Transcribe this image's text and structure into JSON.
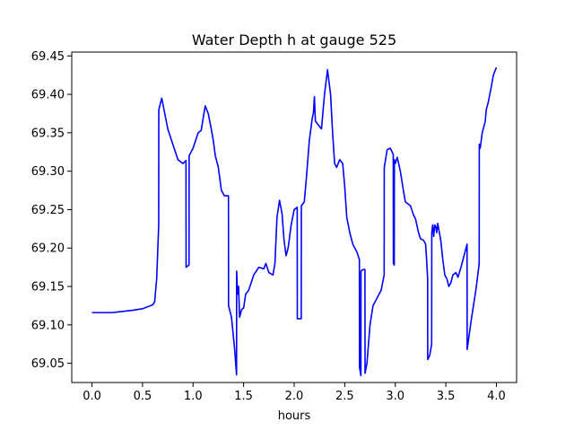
{
  "chart_data": {
    "type": "line",
    "title": "Water Depth h at gauge 525",
    "xlabel": "hours",
    "ylabel": "",
    "xlim": [
      -0.2,
      4.2
    ],
    "ylim": [
      69.025,
      69.455
    ],
    "grid": false,
    "legend": "none",
    "xticks": [
      0.0,
      0.5,
      1.0,
      1.5,
      2.0,
      2.5,
      3.0,
      3.5,
      4.0
    ],
    "xtick_labels": [
      "0.0",
      "0.5",
      "1.0",
      "1.5",
      "2.0",
      "2.5",
      "3.0",
      "3.5",
      "4.0"
    ],
    "yticks": [
      69.05,
      69.1,
      69.15,
      69.2,
      69.25,
      69.3,
      69.35,
      69.4,
      69.45
    ],
    "ytick_labels": [
      "69.05",
      "69.10",
      "69.15",
      "69.20",
      "69.25",
      "69.30",
      "69.35",
      "69.40",
      "69.45"
    ],
    "series": [
      {
        "name": "",
        "color": "#0000ff",
        "points": [
          [
            0.0,
            69.116
          ],
          [
            0.2,
            69.116
          ],
          [
            0.4,
            69.119
          ],
          [
            0.5,
            69.121
          ],
          [
            0.6,
            69.126
          ],
          [
            0.62,
            69.13
          ],
          [
            0.64,
            69.16
          ],
          [
            0.66,
            69.23
          ],
          [
            0.661,
            69.38
          ],
          [
            0.69,
            69.395
          ],
          [
            0.72,
            69.375
          ],
          [
            0.75,
            69.355
          ],
          [
            0.8,
            69.335
          ],
          [
            0.85,
            69.315
          ],
          [
            0.9,
            69.31
          ],
          [
            0.93,
            69.314
          ],
          [
            0.931,
            69.175
          ],
          [
            0.96,
            69.178
          ],
          [
            0.961,
            69.32
          ],
          [
            1.0,
            69.33
          ],
          [
            1.05,
            69.35
          ],
          [
            1.08,
            69.353
          ],
          [
            1.12,
            69.385
          ],
          [
            1.15,
            69.375
          ],
          [
            1.18,
            69.355
          ],
          [
            1.2,
            69.34
          ],
          [
            1.22,
            69.32
          ],
          [
            1.25,
            69.305
          ],
          [
            1.28,
            69.275
          ],
          [
            1.31,
            69.268
          ],
          [
            1.35,
            69.268
          ],
          [
            1.351,
            69.125
          ],
          [
            1.38,
            69.11
          ],
          [
            1.41,
            69.07
          ],
          [
            1.43,
            69.035
          ],
          [
            1.431,
            69.17
          ],
          [
            1.44,
            69.14
          ],
          [
            1.45,
            69.15
          ],
          [
            1.46,
            69.11
          ],
          [
            1.48,
            69.12
          ],
          [
            1.5,
            69.122
          ],
          [
            1.52,
            69.14
          ],
          [
            1.55,
            69.145
          ],
          [
            1.6,
            69.165
          ],
          [
            1.65,
            69.175
          ],
          [
            1.7,
            69.173
          ],
          [
            1.72,
            69.18
          ],
          [
            1.75,
            69.168
          ],
          [
            1.79,
            69.165
          ],
          [
            1.81,
            69.18
          ],
          [
            1.83,
            69.24
          ],
          [
            1.855,
            69.262
          ],
          [
            1.88,
            69.245
          ],
          [
            1.9,
            69.21
          ],
          [
            1.92,
            69.19
          ],
          [
            1.94,
            69.2
          ],
          [
            1.97,
            69.23
          ],
          [
            2.0,
            69.25
          ],
          [
            2.03,
            69.253
          ],
          [
            2.031,
            69.108
          ],
          [
            2.07,
            69.108
          ],
          [
            2.071,
            69.255
          ],
          [
            2.1,
            69.26
          ],
          [
            2.12,
            69.29
          ],
          [
            2.15,
            69.34
          ],
          [
            2.18,
            69.37
          ],
          [
            2.19,
            69.375
          ],
          [
            2.2,
            69.397
          ],
          [
            2.21,
            69.365
          ],
          [
            2.24,
            69.36
          ],
          [
            2.27,
            69.355
          ],
          [
            2.3,
            69.4
          ],
          [
            2.33,
            69.432
          ],
          [
            2.36,
            69.4
          ],
          [
            2.38,
            69.35
          ],
          [
            2.4,
            69.31
          ],
          [
            2.42,
            69.305
          ],
          [
            2.45,
            69.315
          ],
          [
            2.48,
            69.31
          ],
          [
            2.5,
            69.28
          ],
          [
            2.52,
            69.24
          ],
          [
            2.55,
            69.22
          ],
          [
            2.58,
            69.205
          ],
          [
            2.62,
            69.195
          ],
          [
            2.645,
            69.185
          ],
          [
            2.646,
            69.045
          ],
          [
            2.66,
            69.034
          ],
          [
            2.661,
            69.17
          ],
          [
            2.68,
            69.172
          ],
          [
            2.7,
            69.172
          ],
          [
            2.701,
            69.037
          ],
          [
            2.72,
            69.05
          ],
          [
            2.75,
            69.1
          ],
          [
            2.78,
            69.125
          ],
          [
            2.82,
            69.135
          ],
          [
            2.86,
            69.145
          ],
          [
            2.89,
            69.165
          ],
          [
            2.891,
            69.305
          ],
          [
            2.92,
            69.328
          ],
          [
            2.95,
            69.33
          ],
          [
            2.98,
            69.322
          ],
          [
            2.981,
            69.18
          ],
          [
            2.99,
            69.178
          ],
          [
            2.991,
            69.315
          ],
          [
            3.0,
            69.31
          ],
          [
            3.02,
            69.318
          ],
          [
            3.05,
            69.3
          ],
          [
            3.08,
            69.275
          ],
          [
            3.1,
            69.26
          ],
          [
            3.15,
            69.255
          ],
          [
            3.18,
            69.243
          ],
          [
            3.2,
            69.238
          ],
          [
            3.23,
            69.22
          ],
          [
            3.25,
            69.212
          ],
          [
            3.28,
            69.21
          ],
          [
            3.3,
            69.205
          ],
          [
            3.31,
            69.185
          ],
          [
            3.32,
            69.16
          ],
          [
            3.321,
            69.055
          ],
          [
            3.34,
            69.06
          ],
          [
            3.36,
            69.075
          ],
          [
            3.361,
            69.22
          ],
          [
            3.37,
            69.23
          ],
          [
            3.38,
            69.215
          ],
          [
            3.39,
            69.23
          ],
          [
            3.4,
            69.228
          ],
          [
            3.41,
            69.22
          ],
          [
            3.42,
            69.232
          ],
          [
            3.45,
            69.21
          ],
          [
            3.47,
            69.185
          ],
          [
            3.49,
            69.165
          ],
          [
            3.51,
            69.16
          ],
          [
            3.53,
            69.15
          ],
          [
            3.55,
            69.155
          ],
          [
            3.57,
            69.165
          ],
          [
            3.6,
            69.168
          ],
          [
            3.62,
            69.162
          ],
          [
            3.65,
            69.175
          ],
          [
            3.69,
            69.195
          ],
          [
            3.71,
            69.205
          ],
          [
            3.711,
            69.068
          ],
          [
            3.75,
            69.105
          ],
          [
            3.8,
            69.148
          ],
          [
            3.83,
            69.18
          ],
          [
            3.831,
            69.335
          ],
          [
            3.84,
            69.33
          ],
          [
            3.86,
            69.35
          ],
          [
            3.89,
            69.365
          ],
          [
            3.9,
            69.38
          ],
          [
            3.92,
            69.39
          ],
          [
            3.95,
            69.41
          ],
          [
            3.97,
            69.425
          ],
          [
            4.0,
            69.435
          ]
        ]
      }
    ]
  }
}
